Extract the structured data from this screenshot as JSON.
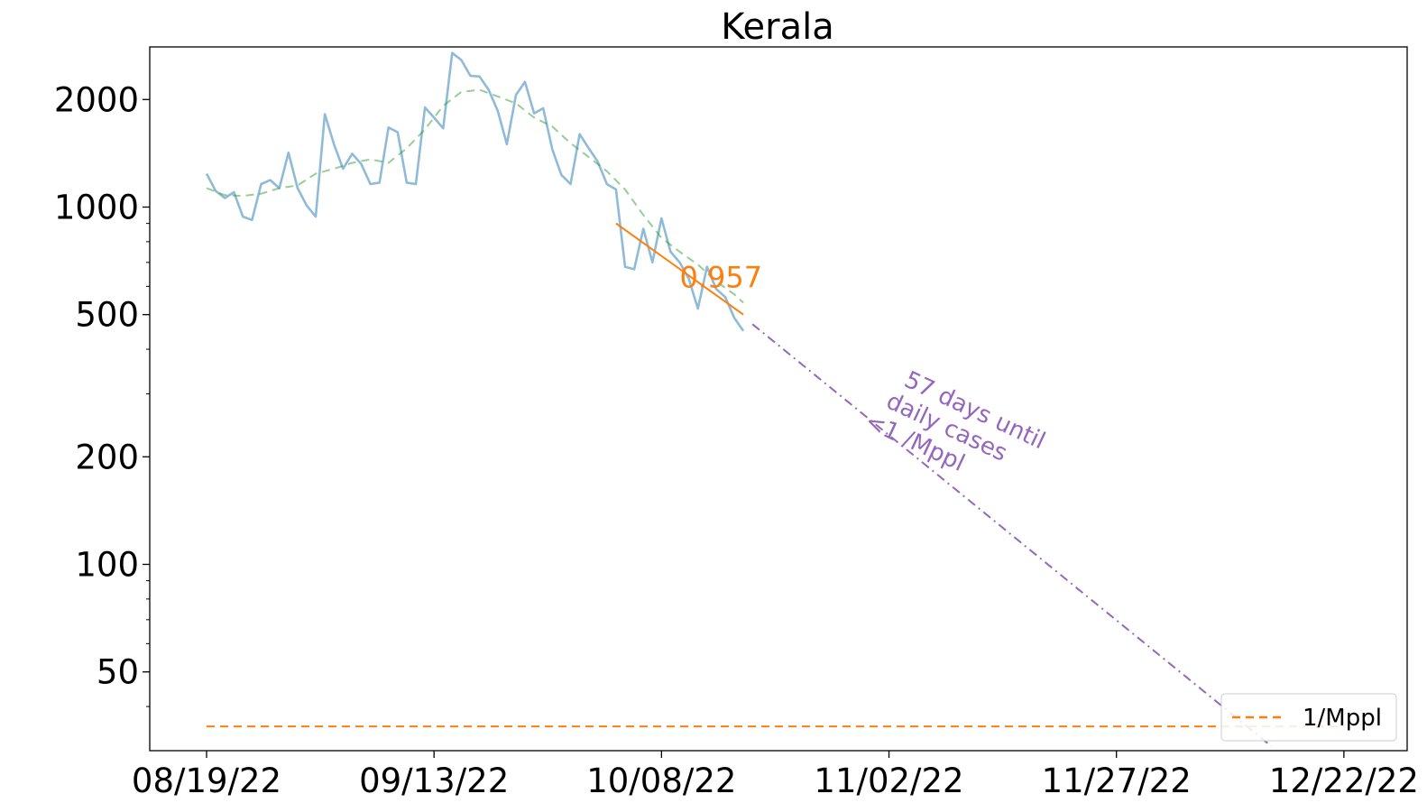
{
  "chart_data": {
    "type": "line",
    "title": "Kerala",
    "xlabel": "",
    "ylabel": "",
    "y_scale": "log",
    "ylim": [
      33,
      2900
    ],
    "xlim": [
      "08/13/22",
      "12/27/22"
    ],
    "grid": false,
    "x_tick_labels": [
      "08/19/22",
      "09/13/22",
      "10/08/22",
      "11/02/22",
      "11/27/22",
      "12/22/22"
    ],
    "x_ticks": [
      "2022-08-19",
      "2022-09-13",
      "2022-10-08",
      "2022-11-02",
      "2022-11-27",
      "2022-12-22"
    ],
    "y_tick_labels": [
      "50",
      "100",
      "200",
      "500",
      "1000",
      "2000"
    ],
    "y_ticks": [
      50,
      100,
      200,
      500,
      1000,
      2000
    ],
    "legend": {
      "position": "lower-right",
      "entries": [
        {
          "label": "1/Mppl",
          "color": "#ff7f0e",
          "style": "dashed"
        }
      ]
    },
    "series": [
      {
        "style": "solid",
        "color": "#1f77b4",
        "opacity": 0.5,
        "x": [
          "2022-08-19",
          "2022-08-20",
          "2022-08-21",
          "2022-08-22",
          "2022-08-23",
          "2022-08-24",
          "2022-08-25",
          "2022-08-26",
          "2022-08-27",
          "2022-08-28",
          "2022-08-29",
          "2022-08-30",
          "2022-08-31",
          "2022-09-01",
          "2022-09-02",
          "2022-09-03",
          "2022-09-04",
          "2022-09-05",
          "2022-09-06",
          "2022-09-07",
          "2022-09-08",
          "2022-09-09",
          "2022-09-10",
          "2022-09-11",
          "2022-09-12",
          "2022-09-13",
          "2022-09-14",
          "2022-09-15",
          "2022-09-16",
          "2022-09-17",
          "2022-09-18",
          "2022-09-19",
          "2022-09-20",
          "2022-09-21",
          "2022-09-22",
          "2022-09-23",
          "2022-09-24",
          "2022-09-25",
          "2022-09-26",
          "2022-09-27",
          "2022-09-28",
          "2022-09-29",
          "2022-09-30",
          "2022-10-01",
          "2022-10-02",
          "2022-10-03",
          "2022-10-04",
          "2022-10-05",
          "2022-10-06",
          "2022-10-07",
          "2022-10-08",
          "2022-10-09",
          "2022-10-10",
          "2022-10-11",
          "2022-10-12",
          "2022-10-13",
          "2022-10-14",
          "2022-10-15",
          "2022-10-16",
          "2022-10-17",
          "2022-10-18"
        ],
        "y": [
          1240,
          1110,
          1060,
          1100,
          940,
          920,
          1160,
          1190,
          1130,
          1420,
          1130,
          1010,
          940,
          1820,
          1500,
          1280,
          1410,
          1320,
          1160,
          1170,
          1670,
          1620,
          1170,
          1160,
          1900,
          1780,
          1660,
          2700,
          2580,
          2330,
          2320,
          2130,
          1860,
          1500,
          2060,
          2240,
          1830,
          1890,
          1450,
          1230,
          1160,
          1600,
          1460,
          1340,
          1160,
          1120,
          680,
          670,
          870,
          700,
          930,
          750,
          700,
          630,
          520,
          680,
          590,
          560,
          490,
          450,
          null
        ],
        "x_end": "2022-10-18"
      },
      {
        "style": "dashed",
        "color": "#2ca02c",
        "opacity": 0.5,
        "x": [
          "2022-08-19",
          "2022-08-21",
          "2022-08-23",
          "2022-08-25",
          "2022-08-27",
          "2022-08-29",
          "2022-08-31",
          "2022-09-02",
          "2022-09-04",
          "2022-09-06",
          "2022-09-08",
          "2022-09-10",
          "2022-09-12",
          "2022-09-14",
          "2022-09-16",
          "2022-09-18",
          "2022-09-20",
          "2022-09-22",
          "2022-09-24",
          "2022-09-26",
          "2022-09-28",
          "2022-09-30",
          "2022-10-02",
          "2022-10-04",
          "2022-10-06",
          "2022-10-08",
          "2022-10-10",
          "2022-10-12",
          "2022-10-14",
          "2022-10-16",
          "2022-10-17"
        ],
        "y": [
          1130,
          1080,
          1075,
          1090,
          1130,
          1150,
          1240,
          1280,
          1330,
          1360,
          1330,
          1460,
          1650,
          1920,
          2100,
          2130,
          2040,
          1950,
          1780,
          1680,
          1510,
          1380,
          1260,
          1120,
          950,
          820,
          750,
          690,
          620,
          570,
          540
        ]
      },
      {
        "style": "solid",
        "color": "#ff7f0e",
        "opacity": 1,
        "x": [
          "2022-10-03",
          "2022-10-17"
        ],
        "y": [
          900,
          500
        ]
      },
      {
        "style": "dashdot",
        "color": "#9467bd",
        "opacity": 1,
        "x": [
          "2022-10-18",
          "2022-12-14"
        ],
        "y": [
          470,
          31
        ]
      },
      {
        "style": "dashed",
        "color": "#ff7f0e",
        "opacity": 1,
        "x": [
          "2022-08-19",
          "2022-12-22"
        ],
        "y": [
          35.2,
          35.2
        ]
      }
    ],
    "annotations": [
      {
        "text": "0.957",
        "color": "#ff7f0e",
        "x": "2022-10-10",
        "y": 640
      },
      {
        "lines": [
          "57 days until",
          "daily cases",
          "<1 /Mppl"
        ],
        "color": "#9467bd",
        "x": "2022-11-01",
        "y": 340,
        "rotation": 25
      }
    ]
  }
}
